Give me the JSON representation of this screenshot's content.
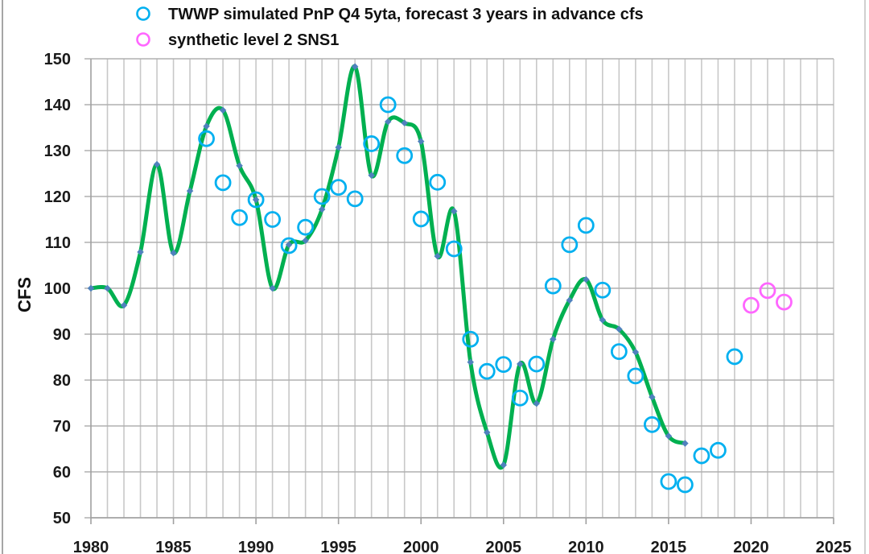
{
  "chart_data": {
    "type": "line",
    "title": "",
    "xlabel": "",
    "ylabel": "CFS",
    "xlim": [
      1980,
      2025
    ],
    "ylim": [
      50,
      150
    ],
    "x_ticks": [
      "1980",
      "1985",
      "1990",
      "1995",
      "2000",
      "2005",
      "2010",
      "2015",
      "2020",
      "2025"
    ],
    "y_ticks": [
      "50",
      "60",
      "70",
      "80",
      "90",
      "100",
      "110",
      "120",
      "130",
      "140",
      "150"
    ],
    "grid": true,
    "legend_position": "top",
    "series": [
      {
        "name": "",
        "kind": "smooth-line",
        "line_color": "#00b050",
        "marker_color": "#4f81bd",
        "x": [
          1980,
          1981,
          1982,
          1983,
          1984,
          1985,
          1986,
          1987,
          1988,
          1989,
          1990,
          1991,
          1992,
          1993,
          1994,
          1995,
          1996,
          1997,
          1998,
          1999,
          2000,
          2001,
          2002,
          2003,
          2004,
          2005,
          2006,
          2007,
          2008,
          2009,
          2010,
          2011,
          2012,
          2013,
          2014,
          2015,
          2016
        ],
        "values": [
          100,
          100,
          96.3,
          107.9,
          127,
          107.7,
          121.2,
          135.3,
          138.8,
          126.7,
          119.3,
          100,
          109.5,
          110.4,
          117.2,
          130.7,
          148.3,
          124.6,
          136.3,
          136,
          132,
          107,
          116.8,
          83.9,
          68.6,
          61.5,
          83.5,
          74.9,
          88.9,
          97.4,
          101.9,
          93.1,
          91.1,
          86.1,
          76.3,
          67.8,
          66.2
        ]
      },
      {
        "name": "TWWP simulated PnP Q4 5yta, forecast 3 years in advance cfs",
        "kind": "scatter",
        "marker_color": "#00b0f0",
        "x": [
          1987,
          1988,
          1989,
          1990,
          1991,
          1992,
          1993,
          1994,
          1995,
          1996,
          1997,
          1998,
          1999,
          2000,
          2001,
          2002,
          2003,
          2004,
          2005,
          2006,
          2007,
          2008,
          2009,
          2010,
          2011,
          2012,
          2013,
          2014,
          2015,
          2016,
          2017,
          2018,
          2019
        ],
        "values": [
          132.6,
          123,
          115.4,
          119.3,
          115,
          109.3,
          113.3,
          120,
          122,
          119.5,
          131.5,
          140,
          128.9,
          115.1,
          123.1,
          108.6,
          88.9,
          81.9,
          83.4,
          76.1,
          83.5,
          100.5,
          109.5,
          113.7,
          99.6,
          86.2,
          80.9,
          70.3,
          57.9,
          57.2,
          63.5,
          64.7,
          85.1
        ]
      },
      {
        "name": "synthetic level 2 SNS1",
        "kind": "scatter",
        "marker_color": "#ff66ff",
        "x": [
          2020,
          2021,
          2022
        ],
        "values": [
          96.3,
          99.5,
          97
        ]
      }
    ]
  }
}
